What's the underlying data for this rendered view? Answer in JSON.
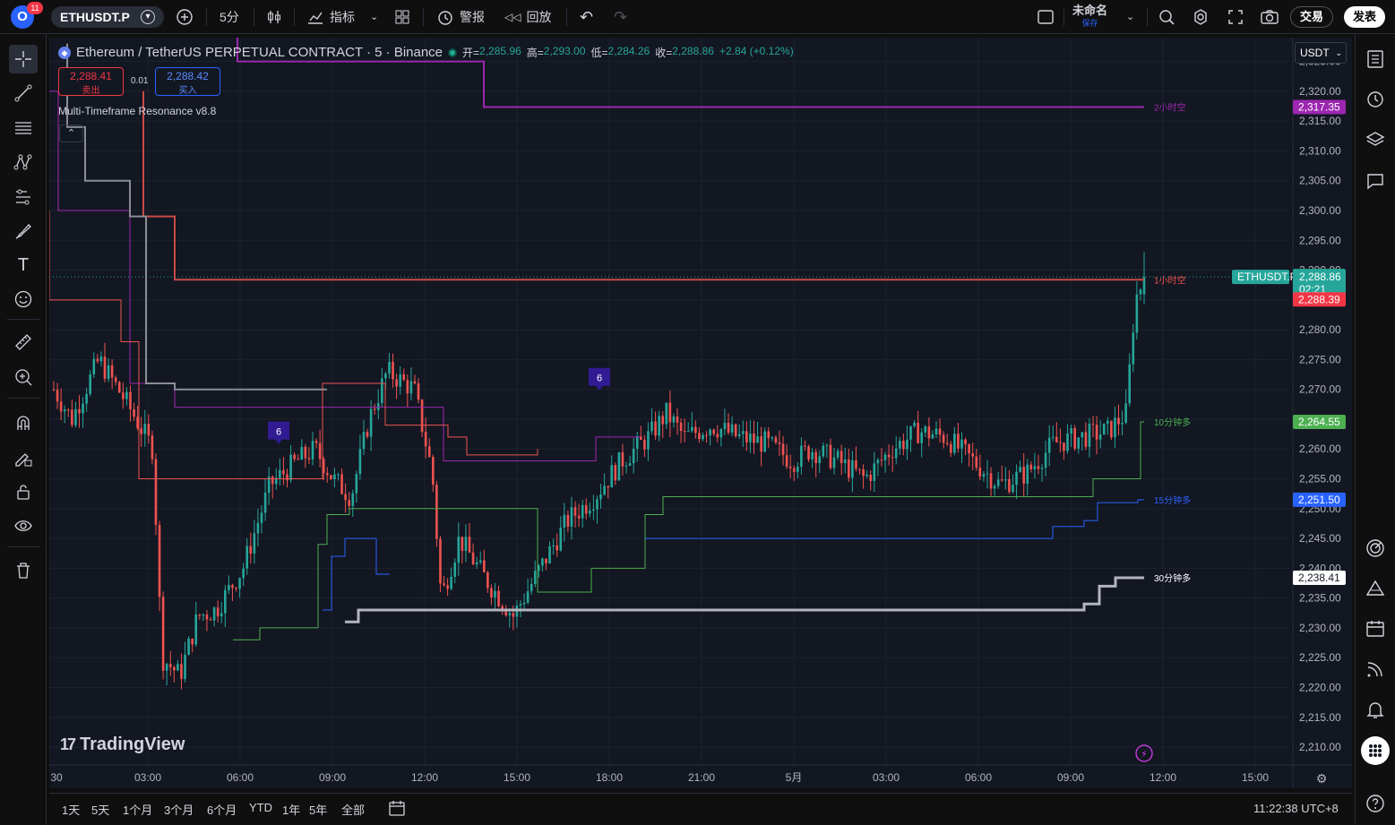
{
  "toolbar": {
    "notification_count": "11",
    "symbol": "ETHUSDT.P",
    "interval": "5分",
    "indicators_label": "指标",
    "alerts_label": "警报",
    "replay_label": "回放",
    "layout_name": "未命名",
    "layout_status": "保存",
    "trade_label": "交易",
    "publish_label": "发表"
  },
  "legend": {
    "symbol_title": "Ethereum / TetherUS PERPETUAL CONTRACT · 5 · Binance",
    "open_label": "开=",
    "open": "2,285.96",
    "high_label": "高=",
    "high": "2,293.00",
    "low_label": "低=",
    "low": "2,284.26",
    "close_label": "收=",
    "close": "2,288.86",
    "change": "+2.84 (+0.12%)",
    "sell_price": "2,288.41",
    "sell_label": "卖出",
    "spread": "0.01",
    "buy_price": "2,288.42",
    "buy_label": "买入",
    "indicator_name": "Multi-Timeframe Resonance v8.8"
  },
  "currency": "USDT",
  "watermark": "TradingView",
  "price_axis": [
    "2,325.00",
    "2,320.00",
    "2,315.00",
    "2,310.00",
    "2,305.00",
    "2,300.00",
    "2,295.00",
    "2,290.00",
    "2,285.00",
    "2,280.00",
    "2,275.00",
    "2,270.00",
    "2,265.00",
    "2,260.00",
    "2,255.00",
    "2,250.00",
    "2,245.00",
    "2,240.00",
    "2,235.00",
    "2,230.00",
    "2,225.00",
    "2,220.00",
    "2,215.00",
    "2,210.00"
  ],
  "time_axis": [
    "30",
    "03:00",
    "06:00",
    "09:00",
    "12:00",
    "15:00",
    "18:00",
    "21:00",
    "5月",
    "03:00",
    "06:00",
    "09:00",
    "12:00",
    "15:00"
  ],
  "price_labels": {
    "symbol_tag": "ETHUSDT.P",
    "last": "2,288.86",
    "countdown": "02:21",
    "red_level": "2,288.39",
    "purple_level": "2,317.35",
    "green_level": "2,264.55",
    "blue_level": "2,251.50",
    "white_level": "2,238.41"
  },
  "line_labels": {
    "purple": "2小时空",
    "red": "1小时空",
    "green": "10分钟多",
    "blue": "15分钟多",
    "white": "30分钟多"
  },
  "signals": [
    "6",
    "6"
  ],
  "ranges": [
    "1天",
    "5天",
    "1个月",
    "3个月",
    "6个月",
    "YTD",
    "1年",
    "5年",
    "全部"
  ],
  "clock": "11:22:38 UTC+8",
  "colors": {
    "up": "#26a69a",
    "down": "#ef5350",
    "purple": "#9c27b0",
    "red": "#ef5350",
    "green": "#4caf50",
    "blue": "#2962ff",
    "white": "#d1d4dc",
    "bg": "#131722"
  },
  "chart_data": {
    "type": "candlestick",
    "x": [
      "30",
      "03:00",
      "06:00",
      "09:00",
      "12:00",
      "15:00",
      "18:00",
      "21:00",
      "5月",
      "03:00",
      "06:00",
      "09:00",
      "12:00",
      "15:00"
    ],
    "ylim": [
      2207,
      2329
    ],
    "last": {
      "open": 2285.96,
      "high": 2293.0,
      "low": 2284.26,
      "close": 2288.86
    },
    "close_path": [
      [
        0,
        2270
      ],
      [
        2,
        2265
      ],
      [
        5,
        2275
      ],
      [
        8,
        2268
      ],
      [
        11,
        2260
      ],
      [
        12,
        2225
      ],
      [
        14,
        2222
      ],
      [
        16,
        2232
      ],
      [
        18,
        2233
      ],
      [
        21,
        2240
      ],
      [
        24,
        2254
      ],
      [
        27,
        2258
      ],
      [
        29,
        2260
      ],
      [
        31,
        2255
      ],
      [
        33,
        2252
      ],
      [
        35,
        2265
      ],
      [
        37,
        2273
      ],
      [
        40,
        2270
      ],
      [
        42,
        2256
      ],
      [
        43,
        2235
      ],
      [
        45,
        2245
      ],
      [
        48,
        2238
      ],
      [
        51,
        2232
      ],
      [
        54,
        2240
      ],
      [
        57,
        2248
      ],
      [
        60,
        2252
      ],
      [
        63,
        2258
      ],
      [
        66,
        2262
      ],
      [
        68,
        2266
      ],
      [
        70,
        2262
      ],
      [
        73,
        2264
      ],
      [
        76,
        2262
      ],
      [
        79,
        2261
      ],
      [
        82,
        2258
      ],
      [
        84,
        2260
      ],
      [
        87,
        2258
      ],
      [
        90,
        2255
      ],
      [
        93,
        2260
      ],
      [
        96,
        2263
      ],
      [
        99,
        2262
      ],
      [
        102,
        2258
      ],
      [
        105,
        2254
      ],
      [
        108,
        2256
      ],
      [
        111,
        2261
      ],
      [
        114,
        2262
      ],
      [
        117,
        2263
      ],
      [
        119,
        2266
      ],
      [
        120,
        2285
      ],
      [
        121,
        2288.86
      ]
    ],
    "series": [
      {
        "name": "2小时空",
        "color": "#9c27b0",
        "value": 2317.35
      },
      {
        "name": "1小时空",
        "color": "#ef5350",
        "value": 2288.39
      },
      {
        "name": "10分钟多",
        "color": "#4caf50",
        "value": 2264.55
      },
      {
        "name": "15分钟多",
        "color": "#2962ff",
        "value": 2251.5
      },
      {
        "name": "30分钟多",
        "color": "#d1d4dc",
        "value": 2238.41
      }
    ]
  }
}
